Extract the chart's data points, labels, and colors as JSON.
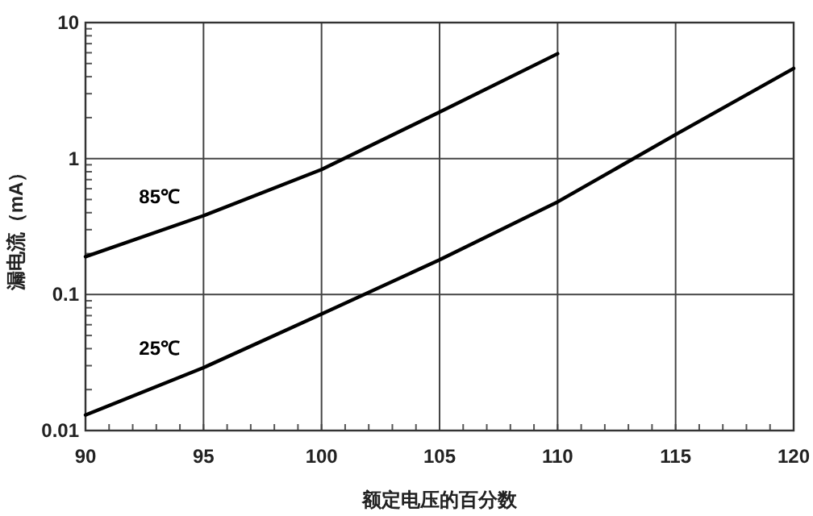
{
  "chart_data": {
    "type": "line",
    "xlabel": "额定电压的百分数",
    "ylabel": "漏电流（mA）",
    "log": "y",
    "grid": true,
    "xlim": [
      90,
      120
    ],
    "xticks": [
      90,
      95,
      100,
      105,
      110,
      115,
      120
    ],
    "ylim": [
      0.01,
      10
    ],
    "yticks": [
      0.01,
      0.1,
      1,
      10
    ],
    "series": [
      {
        "name": "85℃",
        "color": "#000000",
        "x": [
          90,
          95,
          100,
          105,
          110
        ],
        "values": [
          0.19,
          0.38,
          0.83,
          2.2,
          5.9
        ]
      },
      {
        "name": "25℃",
        "color": "#000000",
        "x": [
          90,
          95,
          100,
          105,
          110,
          115,
          120
        ],
        "values": [
          0.013,
          0.029,
          0.072,
          0.18,
          0.48,
          1.5,
          4.6
        ]
      }
    ]
  }
}
